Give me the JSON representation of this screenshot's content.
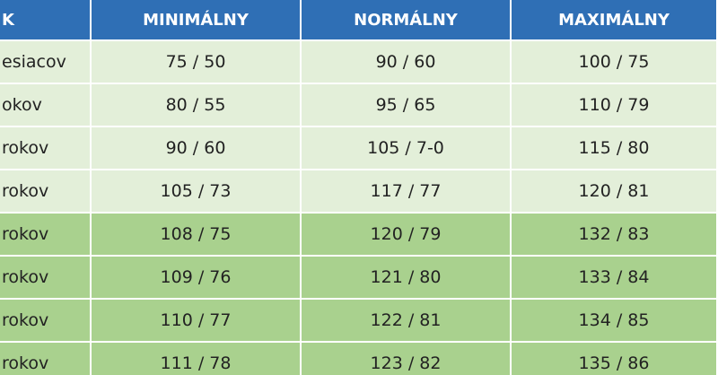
{
  "table": {
    "header": [
      "K",
      "MINIMÁLNY",
      "NORMÁLNY",
      "MAXIMÁLNY"
    ],
    "rows": [
      [
        "esiacov",
        "75 / 50",
        "90 / 60",
        "100 / 75"
      ],
      [
        "okov",
        "80 / 55",
        "95 / 65",
        "110 / 79"
      ],
      [
        "rokov",
        "90 / 60",
        "105 / 7-0",
        "115 / 80"
      ],
      [
        "rokov",
        "105 / 73",
        "117 / 77",
        "120 / 81"
      ],
      [
        "rokov",
        "108 / 75",
        "120 / 79",
        "132 / 83"
      ],
      [
        "rokov",
        "109 / 76",
        "121 / 80",
        "133 / 84"
      ],
      [
        "rokov",
        "110 / 77",
        "122 / 81",
        "134 / 85"
      ],
      [
        "rokov",
        "111 / 78",
        "123 / 82",
        "135 / 86"
      ]
    ]
  }
}
